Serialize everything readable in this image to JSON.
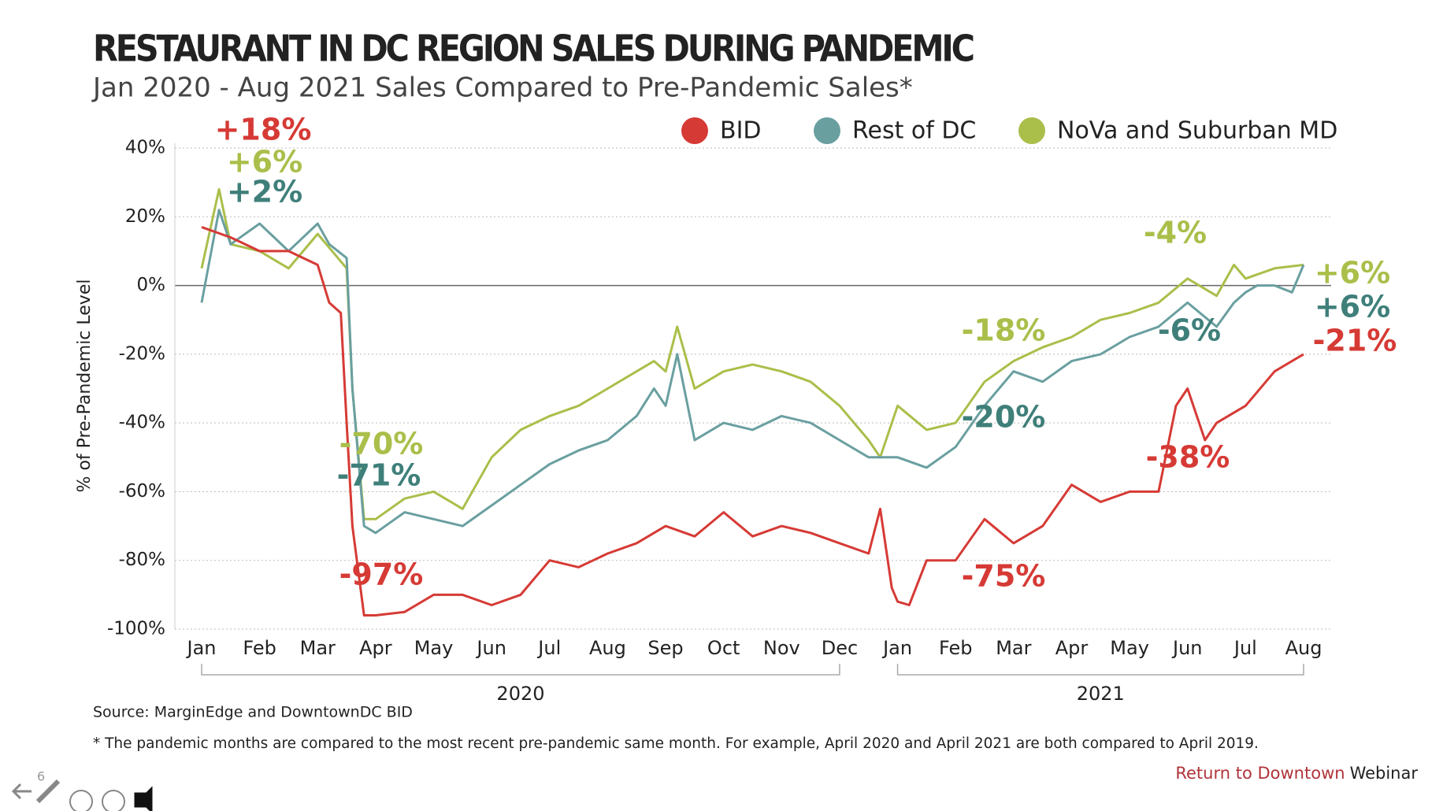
{
  "chart_data": {
    "type": "line",
    "title": "RESTAURANT IN DC REGION SALES DURING PANDEMIC",
    "subtitle": "Jan 2020 - Aug 2021 Sales Compared to Pre-Pandemic Sales*",
    "y_label": "% of Pre-Pandemic Level",
    "xlim": [
      0,
      19
    ],
    "ylim": [
      -100,
      40
    ],
    "xticks": [
      {
        "value": 0,
        "label": "Jan"
      },
      {
        "value": 1,
        "label": "Feb"
      },
      {
        "value": 2,
        "label": "Mar"
      },
      {
        "value": 3,
        "label": "Apr"
      },
      {
        "value": 4,
        "label": "May"
      },
      {
        "value": 5,
        "label": "Jun"
      },
      {
        "value": 6,
        "label": "Jul"
      },
      {
        "value": 7,
        "label": "Aug"
      },
      {
        "value": 8,
        "label": "Sep"
      },
      {
        "value": 9,
        "label": "Oct"
      },
      {
        "value": 10,
        "label": "Nov"
      },
      {
        "value": 11,
        "label": "Dec"
      },
      {
        "value": 12,
        "label": "Jan"
      },
      {
        "value": 13,
        "label": "Feb"
      },
      {
        "value": 14,
        "label": "Mar"
      },
      {
        "value": 15,
        "label": "Apr"
      },
      {
        "value": 16,
        "label": "May"
      },
      {
        "value": 17,
        "label": "Jun"
      },
      {
        "value": 18,
        "label": "Jul"
      },
      {
        "value": 19,
        "label": "Aug"
      }
    ],
    "yticks": [
      {
        "value": 40,
        "label": "40%"
      },
      {
        "value": 20,
        "label": "20%"
      },
      {
        "value": 0,
        "label": "0%"
      },
      {
        "value": -20,
        "label": "-20%"
      },
      {
        "value": -40,
        "label": "-40%"
      },
      {
        "value": -60,
        "label": "-60%"
      },
      {
        "value": -80,
        "label": "-80%"
      },
      {
        "value": -100,
        "label": "-100%"
      }
    ],
    "year_labels": [
      "2020",
      "2021"
    ],
    "grid": true,
    "legend": "top",
    "series": [
      {
        "name": "BID",
        "color": "#d63a35",
        "x": [
          0,
          0.5,
          1,
          1.5,
          2,
          2.2,
          2.4,
          2.5,
          2.6,
          2.8,
          3,
          3.5,
          4,
          4.5,
          5,
          5.5,
          6,
          6.5,
          7,
          7.5,
          8,
          8.5,
          9,
          9.5,
          10,
          10.5,
          11,
          11.5,
          11.7,
          11.9,
          12,
          12.2,
          12.5,
          13,
          13.5,
          14,
          14.5,
          15,
          15.5,
          16,
          16.5,
          16.8,
          17,
          17.3,
          17.5,
          18,
          18.5,
          19
        ],
        "values": [
          17,
          14,
          10,
          10,
          6,
          -5,
          -8,
          -40,
          -70,
          -96,
          -96,
          -95,
          -90,
          -90,
          -93,
          -90,
          -80,
          -82,
          -78,
          -75,
          -70,
          -73,
          -66,
          -73,
          -70,
          -72,
          -75,
          -78,
          -65,
          -88,
          -92,
          -93,
          -80,
          -80,
          -68,
          -75,
          -70,
          -58,
          -63,
          -60,
          -60,
          -35,
          -30,
          -45,
          -40,
          -35,
          -25,
          -20
        ]
      },
      {
        "name": "Rest of DC",
        "color": "#6a9fa0",
        "x": [
          0,
          0.3,
          0.5,
          1,
          1.5,
          2,
          2.2,
          2.5,
          2.6,
          2.8,
          3,
          3.5,
          4,
          4.5,
          5,
          5.5,
          6,
          6.5,
          7,
          7.5,
          7.8,
          8,
          8.2,
          8.5,
          9,
          9.5,
          10,
          10.5,
          11,
          11.5,
          12,
          12.5,
          13,
          13.5,
          14,
          14.5,
          15,
          15.5,
          16,
          16.5,
          17,
          17.5,
          17.8,
          18,
          18.2,
          18.5,
          18.8,
          19
        ],
        "values": [
          -5,
          22,
          12,
          18,
          10,
          18,
          12,
          8,
          -30,
          -70,
          -72,
          -66,
          -68,
          -70,
          -64,
          -58,
          -52,
          -48,
          -45,
          -38,
          -30,
          -35,
          -20,
          -45,
          -40,
          -42,
          -38,
          -40,
          -45,
          -50,
          -50,
          -53,
          -47,
          -35,
          -25,
          -28,
          -22,
          -20,
          -15,
          -12,
          -5,
          -12,
          -5,
          -2,
          0,
          0,
          -2,
          6
        ]
      },
      {
        "name": "NoVa and Suburban MD",
        "color": "#a9bf4a",
        "x": [
          0,
          0.3,
          0.5,
          1,
          1.5,
          2,
          2.5,
          2.6,
          2.8,
          3,
          3.5,
          4,
          4.5,
          5,
          5.5,
          6,
          6.5,
          7,
          7.5,
          7.8,
          8,
          8.2,
          8.5,
          9,
          9.5,
          10,
          10.5,
          11,
          11.5,
          11.7,
          12,
          12.5,
          13,
          13.5,
          14,
          14.5,
          15,
          15.5,
          16,
          16.5,
          17,
          17.5,
          17.8,
          18,
          18.5,
          19
        ],
        "values": [
          5,
          28,
          12,
          10,
          5,
          15,
          5,
          -30,
          -68,
          -68,
          -62,
          -60,
          -65,
          -50,
          -42,
          -38,
          -35,
          -30,
          -25,
          -22,
          -25,
          -12,
          -30,
          -25,
          -23,
          -25,
          -28,
          -35,
          -45,
          -50,
          -35,
          -42,
          -40,
          -28,
          -22,
          -18,
          -15,
          -10,
          -8,
          -5,
          2,
          -3,
          6,
          2,
          5,
          6
        ]
      }
    ],
    "annotations": [
      {
        "text": "+18%",
        "series": 0
      },
      {
        "text": "+6%",
        "series": 2
      },
      {
        "text": "+2%",
        "series": 1
      },
      {
        "text": "-70%",
        "series": 2
      },
      {
        "text": "-71%",
        "series": 1
      },
      {
        "text": "-97%",
        "series": 0
      },
      {
        "text": "-18%",
        "series": 2
      },
      {
        "text": "-20%",
        "series": 1
      },
      {
        "text": "-75%",
        "series": 0
      },
      {
        "text": "-4%",
        "series": 2
      },
      {
        "text": "-6%",
        "series": 1
      },
      {
        "text": "-38%",
        "series": 0
      },
      {
        "text": "+6%",
        "series": 2
      },
      {
        "text": "+6%",
        "series": 1
      },
      {
        "text": "-21%",
        "series": 0
      }
    ]
  },
  "source": "Source: MarginEdge and DowntownDC BID",
  "footnote": "* The pandemic months are compared to the most recent pre-pandemic same month. For example, April 2020 and April 2021 are both compared to April 2019.",
  "branding": {
    "highlight": "Return to Downtown",
    "text": "Webinar"
  },
  "slide_number": "6"
}
